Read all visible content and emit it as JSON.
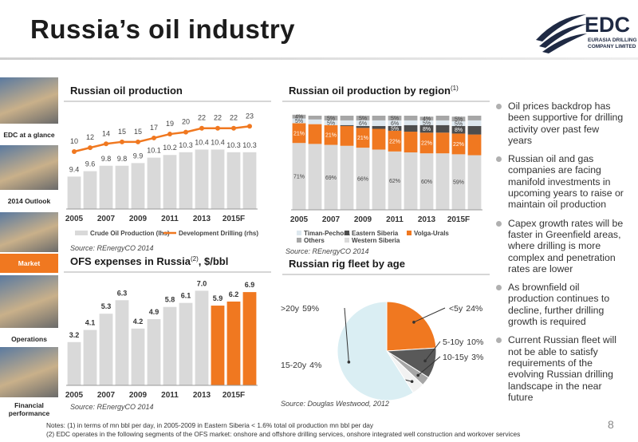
{
  "header": {
    "title": "Russia’s oil industry",
    "logo": "EDC",
    "logo_line1": "EURASIA DRILLING",
    "logo_line2": "COMPANY LIMITED"
  },
  "nav": [
    "EDC at a glance",
    "2014 Outlook",
    "Market",
    "Operations",
    "Financial performance"
  ],
  "nav_active": 2,
  "bullets": [
    "Oil prices backdrop has been supportive for drilling activity over past few years",
    "Russian oil and gas companies are facing manifold investments in upcoming years to raise or maintain oil production",
    "Capex growth rates will be faster in Greenfield areas, where drilling is more complex and penetration rates are lower",
    "As brownfield oil production continues to decline, further drilling growth is required",
    "Current Russian fleet will not be able to satisfy requirements of the evolving Russian drilling landscape in the near future"
  ],
  "notes": [
    "Notes: (1) in terms of mn bbl per day, in 2005-2009 in Eastern Siberia < 1.6% total oil production mn bbl per day",
    "(2) EDC operates in the following segments of the OFS market: onshore and offshore drilling services, onshore integrated well construction and workover services"
  ],
  "page_number": "8",
  "chart_data": [
    {
      "type": "combo",
      "title": "Russian oil production",
      "source": "Source: REnergyCO 2014",
      "categories": [
        "2005",
        null,
        "2007",
        null,
        "2009",
        null,
        "2011",
        null,
        "2013",
        null,
        "2015F",
        null
      ],
      "ylim": [
        8.2,
        11.8
      ],
      "y2lim": [
        -19.5,
        30.5
      ],
      "series": [
        {
          "name": "Crude Oil Production (lhs)",
          "color": "#d9d9d9",
          "values": [
            9.4,
            9.6,
            9.8,
            9.8,
            9.9,
            10.1,
            10.2,
            10.3,
            10.4,
            10.4,
            10.3,
            10.3
          ]
        },
        {
          "name": "Development Drilling (rhs)",
          "color": "#f07820",
          "axis": "y2",
          "values": [
            10,
            12,
            14,
            15,
            15,
            17,
            19,
            20,
            22,
            22,
            22,
            23
          ]
        }
      ]
    },
    {
      "type": "stacked_bar",
      "title": "Russian oil production by region",
      "footnote": "(1)",
      "source": "Source: REnergyCO 2014",
      "categories": [
        "2005",
        null,
        "2007",
        null,
        "2009",
        null,
        "2011",
        null,
        "2013",
        null,
        "2015F",
        null
      ],
      "ylim": [
        0,
        100
      ],
      "series": [
        {
          "name": "Western Siberia",
          "color": "#d9d9d9",
          "values": [
            71,
            70,
            69,
            68,
            66,
            64,
            62,
            61,
            60,
            60,
            59,
            58
          ],
          "value_labels": [
            "71%",
            null,
            "69%",
            null,
            "66%",
            null,
            "62%",
            null,
            "60%",
            null,
            "59%",
            null
          ]
        },
        {
          "name": "Volga-Urals",
          "color": "#f07820",
          "values": [
            21,
            21,
            21,
            21,
            21,
            22,
            22,
            22,
            22,
            22,
            22,
            22
          ],
          "value_labels": [
            "21%",
            null,
            "21%",
            null,
            "21%",
            null,
            "22%",
            null,
            "22%",
            null,
            "22%",
            null
          ]
        },
        {
          "name": "Eastern Siberia",
          "color": "#4d4d4d",
          "values": [
            0,
            0,
            0,
            1,
            2,
            3,
            5,
            7,
            8,
            8,
            8,
            9
          ],
          "value_labels": [
            null,
            null,
            null,
            null,
            null,
            null,
            "5%",
            null,
            "8%",
            null,
            "8%",
            null
          ]
        },
        {
          "name": "Timan-Pechora",
          "color": "#dde7ee",
          "values": [
            5,
            5,
            5,
            5,
            6,
            6,
            6,
            5,
            5,
            5,
            5,
            6
          ],
          "value_labels": [
            "5%",
            null,
            "5%",
            null,
            "6%",
            null,
            "6%",
            null,
            "5%",
            null,
            "5%",
            null
          ]
        },
        {
          "name": "Others",
          "color": "#a6a6a6",
          "values": [
            4,
            4,
            5,
            5,
            5,
            5,
            5,
            5,
            4,
            5,
            5,
            5
          ],
          "value_labels": [
            "4%",
            null,
            "5%",
            null,
            "5%",
            null,
            "5%",
            null,
            "4%",
            null,
            "5%",
            null
          ]
        }
      ]
    },
    {
      "type": "bar",
      "title": "OFS expenses in Russia",
      "footnote": "(2)",
      "title_suffix": ", $/bbl",
      "source": "Source: REnergyCO 2014",
      "categories": [
        "2005",
        null,
        "2007",
        null,
        "2009",
        null,
        "2011",
        null,
        "2013",
        null,
        "2015F",
        null
      ],
      "ylim": [
        0,
        8.5
      ],
      "values": [
        3.2,
        4.1,
        5.3,
        6.3,
        4.2,
        4.9,
        5.8,
        6.1,
        7.0,
        5.9,
        6.2,
        6.9
      ],
      "value_labels": [
        "3.2",
        "4.1",
        "5.3",
        "6.3",
        "4.2",
        "4.9",
        "5.8",
        "6.1",
        "7.0",
        "5.9",
        "6.2",
        "6.9"
      ],
      "colors": [
        "#d9d9d9",
        "#d9d9d9",
        "#d9d9d9",
        "#d9d9d9",
        "#d9d9d9",
        "#d9d9d9",
        "#d9d9d9",
        "#d9d9d9",
        "#d9d9d9",
        "#f07820",
        "#f07820",
        "#f07820"
      ]
    },
    {
      "type": "pie",
      "title": "Russian rig fleet by age",
      "source": "Source: Douglas Westwood, 2012",
      "categories": [
        "<5y",
        "5-10y",
        "10-15y",
        "15-20y",
        ">20y"
      ],
      "values": [
        24,
        10,
        3,
        4,
        59
      ],
      "value_labels": [
        "24%",
        "10%",
        "3%",
        "4%",
        "59%"
      ],
      "colors": [
        "#f07820",
        "#595959",
        "#a6a6a6",
        "#f2f2f2",
        "#daeef3"
      ]
    }
  ]
}
